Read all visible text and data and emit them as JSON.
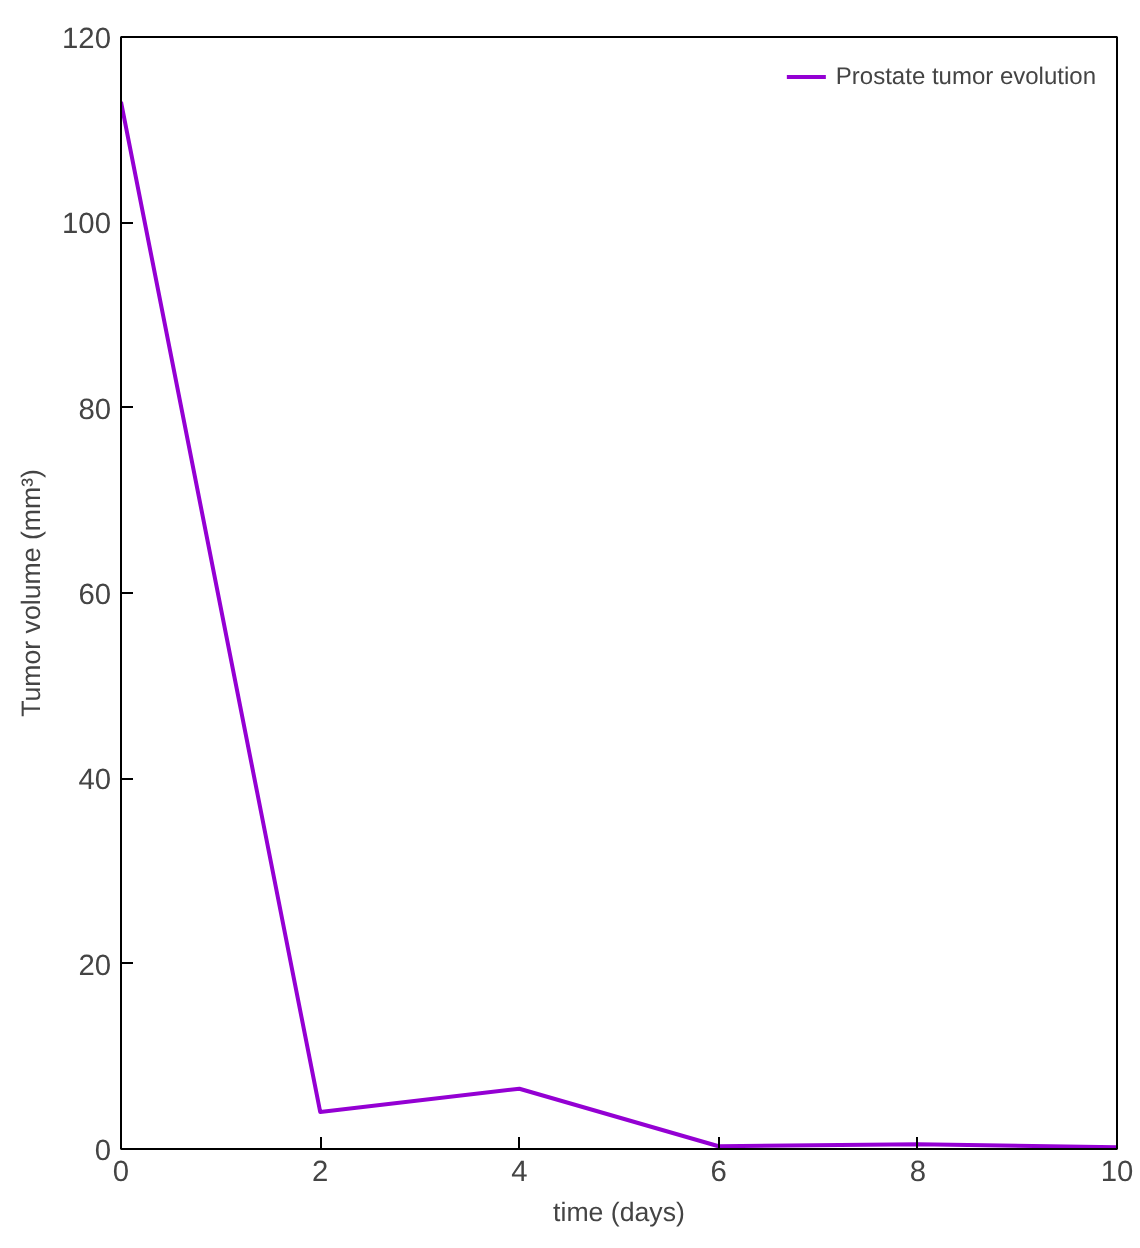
{
  "chart_data": {
    "type": "line",
    "xlabel": "time (days)",
    "ylabel": "Tumor volume (mm³)",
    "x": [
      0,
      2,
      4,
      6,
      8,
      10
    ],
    "series": [
      {
        "name": "Prostate tumor evolution",
        "color": "#9400d3",
        "values": [
          113,
          4,
          6.5,
          0.3,
          0.5,
          0.2
        ]
      }
    ],
    "xlim": [
      0,
      10
    ],
    "ylim": [
      0,
      120
    ],
    "xticks": [
      0,
      2,
      4,
      6,
      8,
      10
    ],
    "yticks": [
      0,
      20,
      40,
      60,
      80,
      100,
      120
    ],
    "grid": false,
    "legend": "top right",
    "marker": "none",
    "line_style": "solid"
  }
}
